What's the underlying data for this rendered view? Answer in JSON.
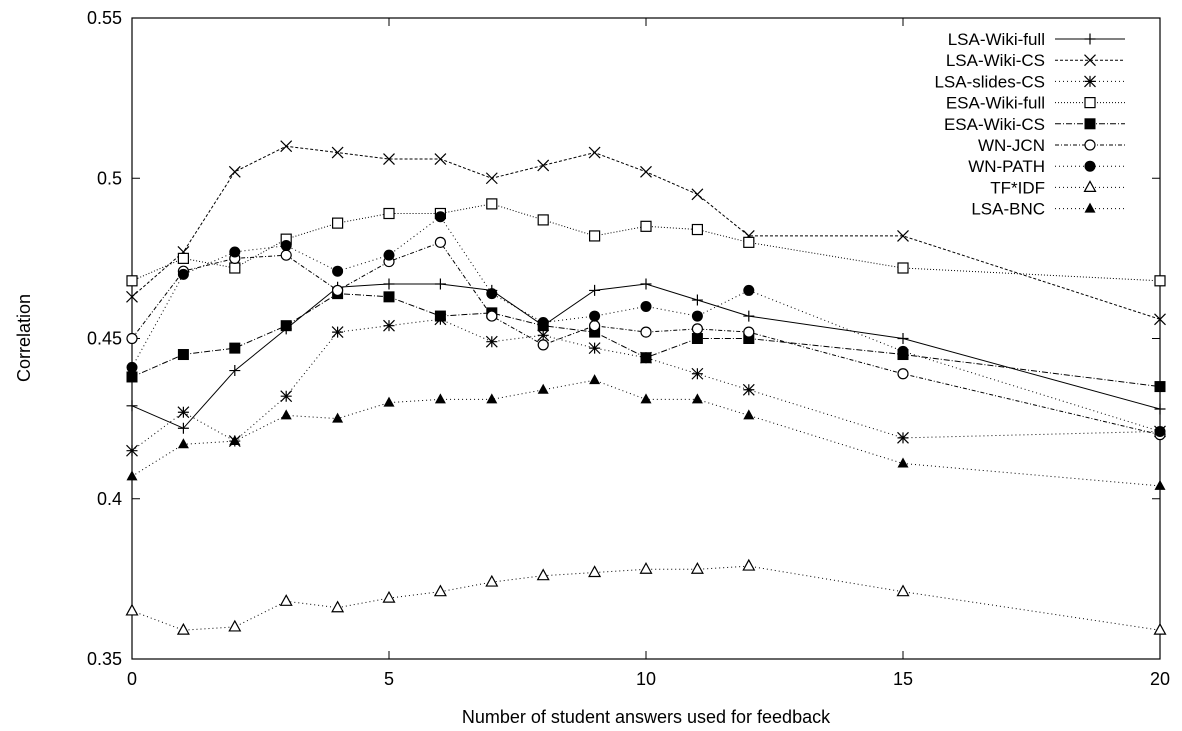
{
  "chart_data": {
    "type": "line",
    "title": "",
    "xlabel": "Number of student answers used for feedback",
    "ylabel": "Correlation",
    "xlim": [
      0,
      20
    ],
    "ylim": [
      0.35,
      0.55
    ],
    "xticks": [
      0,
      5,
      10,
      15,
      20
    ],
    "yticks": [
      0.35,
      0.4,
      0.45,
      0.5,
      0.55
    ],
    "ytick_labels": [
      "0.35",
      "0.4",
      "0.45",
      "0.5",
      "0.55"
    ],
    "grid": false,
    "legend_position": "top-right",
    "series": [
      {
        "name": "LSA-Wiki-full",
        "marker": "plus",
        "dash": "none",
        "x": [
          0,
          1,
          2,
          3,
          4,
          5,
          6,
          7,
          8,
          9,
          10,
          11,
          12,
          15,
          20
        ],
        "y": [
          0.429,
          0.422,
          0.44,
          0.453,
          0.466,
          0.467,
          0.467,
          0.465,
          0.454,
          0.465,
          0.467,
          0.462,
          0.457,
          0.45,
          0.428
        ]
      },
      {
        "name": "LSA-Wiki-CS",
        "marker": "x",
        "dash": "3,2",
        "x": [
          0,
          1,
          2,
          3,
          4,
          5,
          6,
          7,
          8,
          9,
          10,
          11,
          12,
          15,
          20
        ],
        "y": [
          0.463,
          0.477,
          0.502,
          0.51,
          0.508,
          0.506,
          0.506,
          0.5,
          0.504,
          0.508,
          0.502,
          0.495,
          0.482,
          0.482,
          0.456
        ]
      },
      {
        "name": "LSA-slides-CS",
        "marker": "asterisk",
        "dash": "1,3",
        "x": [
          0,
          1,
          2,
          3,
          4,
          5,
          6,
          7,
          8,
          9,
          10,
          11,
          12,
          15,
          20
        ],
        "y": [
          0.415,
          0.427,
          0.418,
          0.432,
          0.452,
          0.454,
          0.456,
          0.449,
          0.451,
          0.447,
          0.444,
          0.439,
          0.434,
          0.419,
          0.421
        ]
      },
      {
        "name": "ESA-Wiki-full",
        "marker": "square-open",
        "dash": "1,2",
        "x": [
          0,
          1,
          2,
          3,
          4,
          5,
          6,
          7,
          8,
          9,
          10,
          11,
          12,
          15,
          20
        ],
        "y": [
          0.468,
          0.475,
          0.472,
          0.481,
          0.486,
          0.489,
          0.489,
          0.492,
          0.487,
          0.482,
          0.485,
          0.484,
          0.48,
          0.472,
          0.468
        ]
      },
      {
        "name": "ESA-Wiki-CS",
        "marker": "square-filled",
        "dash": "6,2,1,2",
        "x": [
          0,
          1,
          2,
          3,
          4,
          5,
          6,
          7,
          8,
          9,
          10,
          11,
          12,
          15,
          20
        ],
        "y": [
          0.438,
          0.445,
          0.447,
          0.454,
          0.464,
          0.463,
          0.457,
          0.458,
          0.454,
          0.452,
          0.444,
          0.45,
          0.45,
          0.445,
          0.435
        ]
      },
      {
        "name": "WN-JCN",
        "marker": "circle-open",
        "dash": "4,2,1,2",
        "x": [
          0,
          1,
          2,
          3,
          4,
          5,
          6,
          7,
          8,
          9,
          10,
          11,
          12,
          15,
          20
        ],
        "y": [
          0.45,
          0.471,
          0.475,
          0.476,
          0.465,
          0.474,
          0.48,
          0.457,
          0.448,
          0.454,
          0.452,
          0.453,
          0.452,
          0.439,
          0.42
        ]
      },
      {
        "name": "WN-PATH",
        "marker": "circle-filled",
        "dash": "1,3",
        "x": [
          0,
          1,
          2,
          3,
          4,
          5,
          6,
          7,
          8,
          9,
          10,
          11,
          12,
          15,
          20
        ],
        "y": [
          0.441,
          0.47,
          0.477,
          0.479,
          0.471,
          0.476,
          0.488,
          0.464,
          0.455,
          0.457,
          0.46,
          0.457,
          0.465,
          0.446,
          0.421
        ]
      },
      {
        "name": "TF*IDF",
        "marker": "triangle-open",
        "dash": "1,3",
        "x": [
          0,
          1,
          2,
          3,
          4,
          5,
          6,
          7,
          8,
          9,
          10,
          11,
          12,
          15,
          20
        ],
        "y": [
          0.365,
          0.359,
          0.36,
          0.368,
          0.366,
          0.369,
          0.371,
          0.374,
          0.376,
          0.377,
          0.378,
          0.378,
          0.379,
          0.371,
          0.359
        ]
      },
      {
        "name": "LSA-BNC",
        "marker": "triangle-filled",
        "dash": "1,3",
        "x": [
          0,
          1,
          2,
          3,
          4,
          5,
          6,
          7,
          8,
          9,
          10,
          11,
          12,
          15,
          20
        ],
        "y": [
          0.407,
          0.417,
          0.418,
          0.426,
          0.425,
          0.43,
          0.431,
          0.431,
          0.434,
          0.437,
          0.431,
          0.431,
          0.426,
          0.411,
          0.404
        ]
      }
    ]
  }
}
